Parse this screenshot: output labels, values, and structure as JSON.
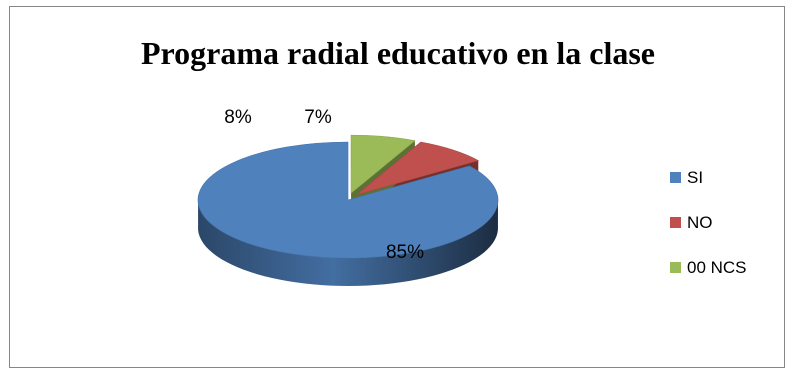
{
  "chart_data": {
    "type": "pie",
    "title": "Programa radial educativo en la clase",
    "style": "3d-exploded",
    "legend_position": "right",
    "slices": [
      {
        "label": "SI",
        "value": 85,
        "display": "85%",
        "color": "#4F81BD"
      },
      {
        "label": "NO",
        "value": 8,
        "display": "8%",
        "color": "#C0504D"
      },
      {
        "label": "00 NCS",
        "value": 7,
        "display": "7%",
        "color": "#9BBB59"
      }
    ]
  }
}
